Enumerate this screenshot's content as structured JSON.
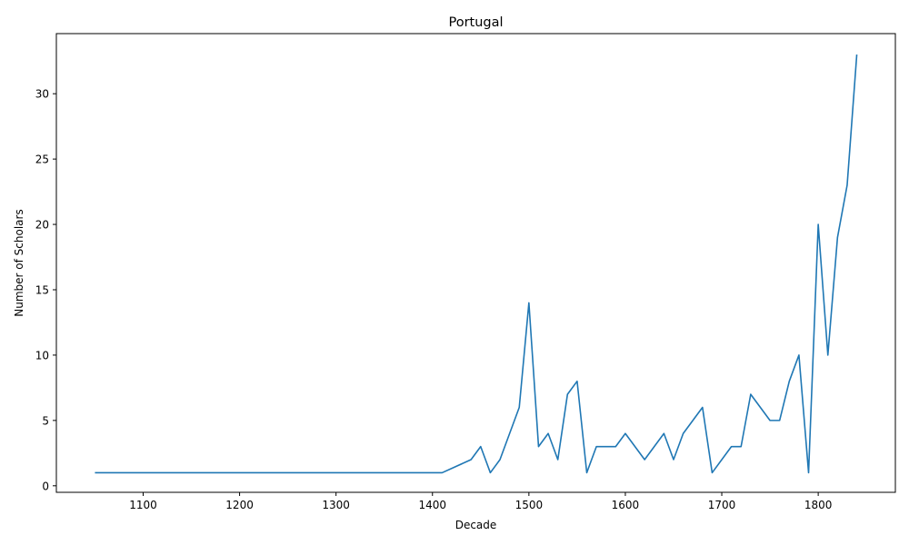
{
  "chart_data": {
    "type": "line",
    "title": "Portugal",
    "xlabel": "Decade",
    "ylabel": "Number of Scholars",
    "xlim": [
      1010,
      1880
    ],
    "ylim": [
      -0.5,
      34.6
    ],
    "xticks": [
      1100,
      1200,
      1300,
      1400,
      1500,
      1600,
      1700,
      1800
    ],
    "yticks": [
      0,
      5,
      10,
      15,
      20,
      25,
      30
    ],
    "grid": false,
    "legend": "none",
    "series": [
      {
        "color": "#1f77b4",
        "x": [
          1050,
          1410,
          1440,
          1450,
          1460,
          1470,
          1480,
          1490,
          1500,
          1510,
          1520,
          1530,
          1540,
          1550,
          1560,
          1570,
          1580,
          1590,
          1600,
          1610,
          1620,
          1630,
          1640,
          1650,
          1660,
          1670,
          1680,
          1690,
          1710,
          1720,
          1730,
          1740,
          1750,
          1760,
          1770,
          1780,
          1790,
          1800,
          1810,
          1820,
          1830,
          1840
        ],
        "y": [
          1,
          1,
          2,
          3,
          1,
          2,
          4,
          6,
          14,
          3,
          4,
          2,
          7,
          8,
          1,
          3,
          3,
          3,
          4,
          3,
          2,
          3,
          4,
          2,
          4,
          5,
          6,
          1,
          3,
          3,
          7,
          6,
          5,
          5,
          8,
          10,
          1,
          20,
          10,
          19,
          23,
          33
        ]
      }
    ]
  }
}
